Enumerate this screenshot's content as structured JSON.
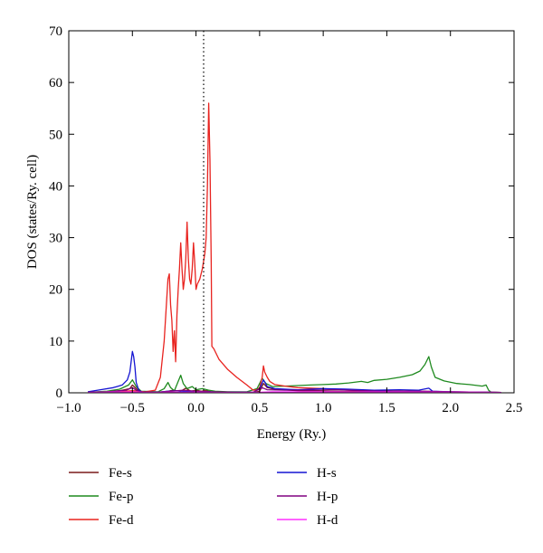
{
  "chart_data": {
    "type": "line",
    "title": "",
    "xlabel": "Energy (Ry.)",
    "ylabel": "DOS (states/Ry. cell)",
    "xlim": [
      -1.0,
      2.5
    ],
    "ylim": [
      0,
      70
    ],
    "x_ticks": [
      -1.0,
      -0.5,
      0.0,
      0.5,
      1.0,
      1.5,
      2.0,
      2.5
    ],
    "x_tick_labels": [
      "−1.0",
      "−0.5",
      "0.0",
      "0.5",
      "1.0",
      "1.5",
      "2.0",
      "2.5"
    ],
    "y_ticks": [
      0,
      10,
      20,
      30,
      40,
      50,
      60,
      70
    ],
    "y_tick_labels": [
      "0",
      "10",
      "20",
      "30",
      "40",
      "50",
      "60",
      "70"
    ],
    "fermi_level": 0.06,
    "grid": false,
    "legend_position": "below",
    "series": [
      {
        "name": "Fe-s",
        "color": "#7a1a1a",
        "points": [
          [
            -0.85,
            0.1
          ],
          [
            -0.7,
            0.2
          ],
          [
            -0.6,
            0.4
          ],
          [
            -0.52,
            0.8
          ],
          [
            -0.5,
            1.5
          ],
          [
            -0.47,
            0.8
          ],
          [
            -0.43,
            0.2
          ],
          [
            -0.3,
            0.1
          ],
          [
            -0.22,
            0.3
          ],
          [
            -0.18,
            0.5
          ],
          [
            -0.12,
            0.3
          ],
          [
            -0.08,
            0.9
          ],
          [
            -0.04,
            0.3
          ],
          [
            0.0,
            0.5
          ],
          [
            0.04,
            0.3
          ],
          [
            0.08,
            0.4
          ],
          [
            0.12,
            0.2
          ],
          [
            0.3,
            0.05
          ],
          [
            0.45,
            0.05
          ],
          [
            0.5,
            0.3
          ],
          [
            0.53,
            1.8
          ],
          [
            0.56,
            1.0
          ],
          [
            0.62,
            0.7
          ],
          [
            0.8,
            0.4
          ],
          [
            1.0,
            0.3
          ],
          [
            1.3,
            0.25
          ],
          [
            1.6,
            0.2
          ],
          [
            1.85,
            0.2
          ],
          [
            2.0,
            0.15
          ],
          [
            2.3,
            0.1
          ],
          [
            2.4,
            0.05
          ]
        ]
      },
      {
        "name": "Fe-p",
        "color": "#1f8a1f",
        "points": [
          [
            -0.85,
            0.1
          ],
          [
            -0.7,
            0.3
          ],
          [
            -0.6,
            0.7
          ],
          [
            -0.53,
            1.5
          ],
          [
            -0.5,
            2.5
          ],
          [
            -0.47,
            1.2
          ],
          [
            -0.43,
            0.3
          ],
          [
            -0.3,
            0.2
          ],
          [
            -0.25,
            0.8
          ],
          [
            -0.22,
            2.0
          ],
          [
            -0.2,
            1.0
          ],
          [
            -0.17,
            0.4
          ],
          [
            -0.14,
            2.2
          ],
          [
            -0.12,
            3.4
          ],
          [
            -0.1,
            1.8
          ],
          [
            -0.07,
            0.8
          ],
          [
            -0.03,
            1.2
          ],
          [
            0.0,
            0.6
          ],
          [
            0.05,
            0.8
          ],
          [
            0.1,
            0.5
          ],
          [
            0.15,
            0.3
          ],
          [
            0.25,
            0.2
          ],
          [
            0.4,
            0.2
          ],
          [
            0.48,
            0.8
          ],
          [
            0.52,
            2.8
          ],
          [
            0.55,
            1.8
          ],
          [
            0.6,
            1.2
          ],
          [
            0.7,
            1.3
          ],
          [
            0.8,
            1.4
          ],
          [
            0.9,
            1.5
          ],
          [
            1.0,
            1.6
          ],
          [
            1.1,
            1.7
          ],
          [
            1.2,
            1.9
          ],
          [
            1.3,
            2.2
          ],
          [
            1.35,
            2.0
          ],
          [
            1.4,
            2.4
          ],
          [
            1.5,
            2.6
          ],
          [
            1.6,
            3.0
          ],
          [
            1.7,
            3.5
          ],
          [
            1.76,
            4.2
          ],
          [
            1.8,
            5.5
          ],
          [
            1.83,
            7.0
          ],
          [
            1.85,
            5.0
          ],
          [
            1.88,
            3.0
          ],
          [
            1.95,
            2.3
          ],
          [
            2.05,
            1.8
          ],
          [
            2.15,
            1.6
          ],
          [
            2.25,
            1.3
          ],
          [
            2.28,
            1.5
          ],
          [
            2.3,
            0.5
          ],
          [
            2.32,
            0.1
          ],
          [
            2.4,
            0.05
          ]
        ]
      },
      {
        "name": "Fe-d",
        "color": "#e8231f",
        "points": [
          [
            -0.85,
            0.1
          ],
          [
            -0.6,
            0.2
          ],
          [
            -0.5,
            0.4
          ],
          [
            -0.4,
            0.2
          ],
          [
            -0.32,
            0.5
          ],
          [
            -0.28,
            3.0
          ],
          [
            -0.25,
            10.0
          ],
          [
            -0.23,
            18.0
          ],
          [
            -0.22,
            22.0
          ],
          [
            -0.21,
            23.0
          ],
          [
            -0.2,
            17.0
          ],
          [
            -0.19,
            14.0
          ],
          [
            -0.18,
            8.0
          ],
          [
            -0.17,
            12.0
          ],
          [
            -0.16,
            6.0
          ],
          [
            -0.15,
            15.0
          ],
          [
            -0.14,
            20.0
          ],
          [
            -0.13,
            24.0
          ],
          [
            -0.12,
            29.0
          ],
          [
            -0.11,
            24.0
          ],
          [
            -0.1,
            20.0
          ],
          [
            -0.09,
            22.0
          ],
          [
            -0.08,
            26.0
          ],
          [
            -0.07,
            33.0
          ],
          [
            -0.06,
            26.0
          ],
          [
            -0.05,
            22.0
          ],
          [
            -0.04,
            21.0
          ],
          [
            -0.03,
            24.0
          ],
          [
            -0.02,
            29.0
          ],
          [
            -0.01,
            25.0
          ],
          [
            0.0,
            20.0
          ],
          [
            0.01,
            21.0
          ],
          [
            0.03,
            22.0
          ],
          [
            0.05,
            24.0
          ],
          [
            0.07,
            27.0
          ],
          [
            0.08,
            30.0
          ],
          [
            0.09,
            40.0
          ],
          [
            0.1,
            56.0
          ],
          [
            0.11,
            45.0
          ],
          [
            0.12,
            25.0
          ],
          [
            0.125,
            9.0
          ],
          [
            0.14,
            8.5
          ],
          [
            0.18,
            6.5
          ],
          [
            0.25,
            4.5
          ],
          [
            0.32,
            3.0
          ],
          [
            0.4,
            1.5
          ],
          [
            0.45,
            0.5
          ],
          [
            0.48,
            0.6
          ],
          [
            0.5,
            1.0
          ],
          [
            0.52,
            3.0
          ],
          [
            0.53,
            5.2
          ],
          [
            0.54,
            4.0
          ],
          [
            0.56,
            3.0
          ],
          [
            0.58,
            2.2
          ],
          [
            0.62,
            1.6
          ],
          [
            0.7,
            1.3
          ],
          [
            0.8,
            1.0
          ],
          [
            1.0,
            0.8
          ],
          [
            1.2,
            0.5
          ],
          [
            1.4,
            0.4
          ],
          [
            1.7,
            0.3
          ],
          [
            2.0,
            0.2
          ],
          [
            2.3,
            0.1
          ],
          [
            2.4,
            0.05
          ]
        ]
      },
      {
        "name": "H-s",
        "color": "#1414d2",
        "points": [
          [
            -0.85,
            0.2
          ],
          [
            -0.75,
            0.6
          ],
          [
            -0.65,
            1.0
          ],
          [
            -0.58,
            1.5
          ],
          [
            -0.54,
            2.5
          ],
          [
            -0.52,
            4.0
          ],
          [
            -0.51,
            6.0
          ],
          [
            -0.5,
            8.0
          ],
          [
            -0.49,
            7.0
          ],
          [
            -0.48,
            5.0
          ],
          [
            -0.47,
            2.0
          ],
          [
            -0.45,
            0.5
          ],
          [
            -0.42,
            0.1
          ],
          [
            -0.3,
            0.1
          ],
          [
            -0.22,
            0.3
          ],
          [
            -0.15,
            0.4
          ],
          [
            -0.1,
            0.3
          ],
          [
            0.0,
            0.2
          ],
          [
            0.1,
            0.2
          ],
          [
            0.2,
            0.1
          ],
          [
            0.45,
            0.1
          ],
          [
            0.5,
            0.8
          ],
          [
            0.53,
            2.5
          ],
          [
            0.56,
            1.2
          ],
          [
            0.62,
            0.8
          ],
          [
            0.8,
            0.6
          ],
          [
            1.0,
            0.8
          ],
          [
            1.2,
            0.7
          ],
          [
            1.4,
            0.5
          ],
          [
            1.6,
            0.6
          ],
          [
            1.75,
            0.5
          ],
          [
            1.83,
            0.9
          ],
          [
            1.86,
            0.3
          ],
          [
            2.0,
            0.2
          ],
          [
            2.3,
            0.1
          ],
          [
            2.4,
            0.05
          ]
        ]
      },
      {
        "name": "H-p",
        "color": "#800080",
        "points": [
          [
            -0.85,
            0.1
          ],
          [
            -0.7,
            0.2
          ],
          [
            -0.55,
            0.5
          ],
          [
            -0.5,
            1.0
          ],
          [
            -0.47,
            0.5
          ],
          [
            -0.42,
            0.1
          ],
          [
            -0.3,
            0.1
          ],
          [
            -0.2,
            0.3
          ],
          [
            -0.1,
            0.5
          ],
          [
            0.0,
            0.3
          ],
          [
            0.1,
            0.2
          ],
          [
            0.3,
            0.1
          ],
          [
            0.45,
            0.1
          ],
          [
            0.52,
            1.0
          ],
          [
            0.56,
            0.6
          ],
          [
            0.7,
            0.5
          ],
          [
            0.9,
            0.5
          ],
          [
            1.1,
            0.6
          ],
          [
            1.3,
            0.4
          ],
          [
            1.5,
            0.3
          ],
          [
            1.8,
            0.3
          ],
          [
            2.0,
            0.2
          ],
          [
            2.3,
            0.1
          ],
          [
            2.4,
            0.05
          ]
        ]
      },
      {
        "name": "H-d",
        "color": "#ff30ff",
        "points": [
          [
            -0.85,
            0.05
          ],
          [
            -0.5,
            0.2
          ],
          [
            -0.4,
            0.05
          ],
          [
            -0.2,
            0.1
          ],
          [
            0.0,
            0.1
          ],
          [
            0.2,
            0.05
          ],
          [
            0.5,
            0.1
          ],
          [
            0.6,
            0.2
          ],
          [
            0.8,
            0.2
          ],
          [
            1.0,
            0.2
          ],
          [
            1.3,
            0.15
          ],
          [
            1.6,
            0.15
          ],
          [
            1.9,
            0.1
          ],
          [
            2.2,
            0.1
          ],
          [
            2.4,
            0.05
          ]
        ]
      }
    ]
  }
}
